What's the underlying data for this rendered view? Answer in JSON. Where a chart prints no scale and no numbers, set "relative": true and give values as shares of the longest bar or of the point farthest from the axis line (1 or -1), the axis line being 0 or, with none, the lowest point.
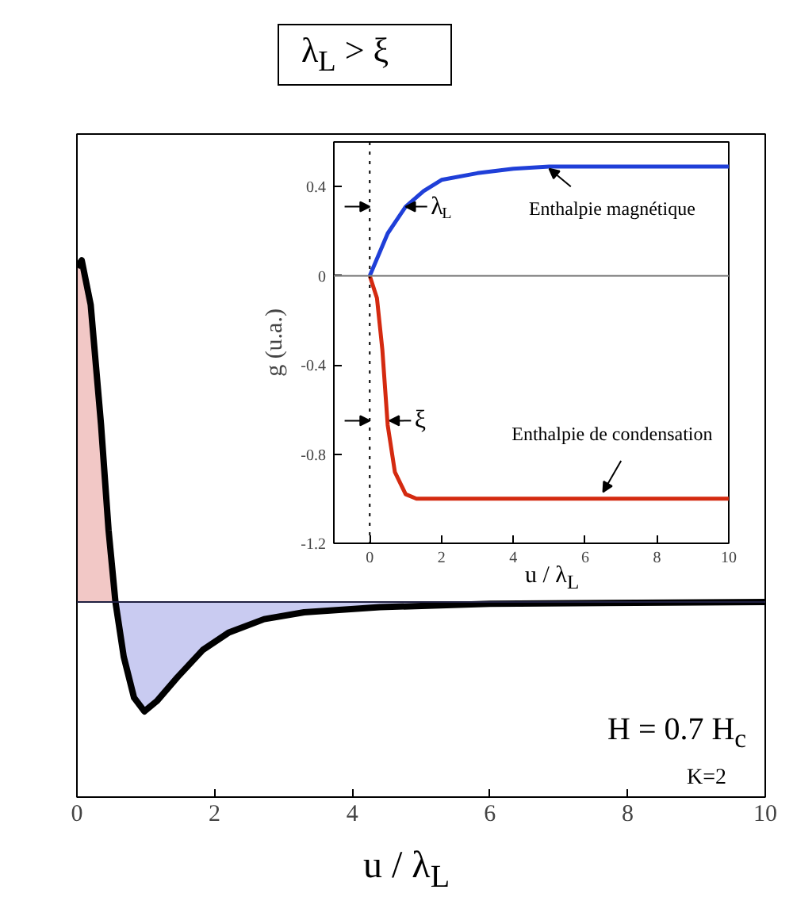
{
  "chart_data": [
    {
      "type": "line",
      "title": "λ$_{L}$ > ξ",
      "xlabel": "u / λ$_{L}$",
      "relative": true,
      "xlim": [
        0,
        10
      ],
      "xticks": [
        0,
        2,
        4,
        6,
        8,
        10
      ],
      "grid": false,
      "series": [
        {
          "type": "area",
          "color": "#f2c8c6",
          "x": [
            0,
            0.07,
            0.2,
            0.35,
            0.46,
            0.56
          ],
          "values": [
            0.98,
            1.0,
            0.87,
            0.52,
            0.21,
            0
          ]
        },
        {
          "type": "area",
          "color": "#c9cbf1",
          "x": [
            0.56,
            0.68,
            0.83,
            0.98,
            1.16,
            1.46,
            1.83,
            2.2,
            2.72,
            3.3,
            4.4,
            6,
            10
          ],
          "values": [
            0,
            -0.16,
            -0.28,
            -0.32,
            -0.29,
            -0.22,
            -0.14,
            -0.09,
            -0.05,
            -0.03,
            -0.015,
            -0.005,
            0
          ]
        },
        {
          "type": "line",
          "color": "#000000",
          "x": [
            0,
            0.07,
            0.2,
            0.35,
            0.46,
            0.56,
            0.68,
            0.83,
            0.98,
            1.16,
            1.46,
            1.83,
            2.2,
            2.72,
            3.3,
            4.4,
            6,
            10
          ],
          "values": [
            0.98,
            1.0,
            0.87,
            0.52,
            0.21,
            0,
            -0.16,
            -0.28,
            -0.32,
            -0.29,
            -0.22,
            -0.14,
            -0.09,
            -0.05,
            -0.03,
            -0.015,
            -0.005,
            0
          ]
        }
      ],
      "annotations": [
        "H = 0.7 H$_{c}$",
        "K=2"
      ]
    },
    {
      "type": "line",
      "xlabel": "u / λ$_{L}$",
      "ylabel": "g (u.a.)",
      "xlim": [
        -1,
        10
      ],
      "xticks": [
        0,
        2,
        4,
        6,
        8,
        10
      ],
      "ylim": [
        -1.2,
        0.6
      ],
      "yticks": [
        -1.2,
        -0.8,
        -0.4,
        0,
        0.4
      ],
      "grid": false,
      "series": [
        {
          "color": "#1f3fd8",
          "x": [
            0,
            0.5,
            1,
            1.5,
            2,
            3,
            4,
            5,
            10
          ],
          "values": [
            0,
            0.19,
            0.31,
            0.38,
            0.43,
            0.46,
            0.48,
            0.49,
            0.49
          ]
        },
        {
          "color": "#d42a10",
          "x": [
            0,
            0.2,
            0.35,
            0.5,
            0.7,
            1.0,
            1.3,
            10
          ],
          "values": [
            0,
            -0.1,
            -0.33,
            -0.67,
            -0.88,
            -0.98,
            -1.0,
            -1.0
          ]
        }
      ],
      "ref_lines": [
        {
          "axis": "x",
          "value": 0,
          "line_style": "dotted",
          "color": "#000000"
        },
        {
          "axis": "y",
          "value": 0,
          "line_style": "solid",
          "color": "#808080"
        }
      ],
      "annotations": [
        {
          "text": "λ$_{L}$",
          "x": 1,
          "y": 0.31
        },
        {
          "text": "ξ",
          "x": 0.55,
          "y": -0.65
        },
        {
          "text": "Enthalpie magnétique",
          "x": 5,
          "y": 0.49
        },
        {
          "text": "Enthalpie de condensation",
          "x": 6.5,
          "y": -1.0
        }
      ]
    }
  ]
}
